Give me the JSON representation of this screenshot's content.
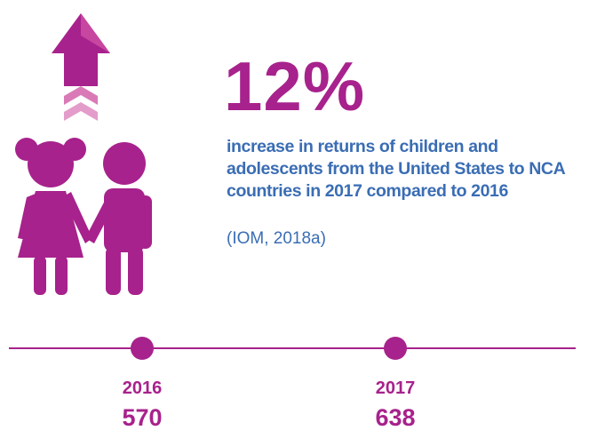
{
  "headline": "12%",
  "description": "increase in returns of children and adolescents from the United States to NCA countries in 2017 compared to 2016",
  "source": "(IOM, 2018a)",
  "timeline": [
    {
      "year": "2016",
      "value": "570"
    },
    {
      "year": "2017",
      "value": "638"
    }
  ]
}
